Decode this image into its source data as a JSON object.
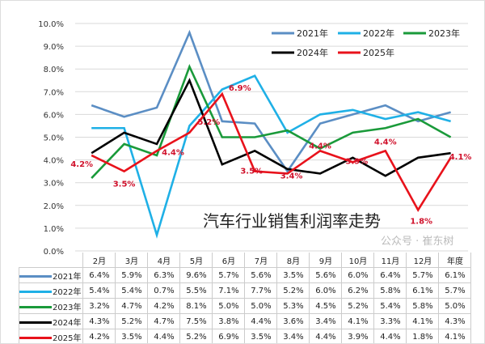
{
  "chart_data": {
    "type": "line",
    "title": "汽车行业销售利润率走势",
    "categories": [
      "2月",
      "3月",
      "4月",
      "5月",
      "6月",
      "7月",
      "8月",
      "9月",
      "10月",
      "11月",
      "12月",
      "年度"
    ],
    "yticks": [
      "0.0%",
      "1.0%",
      "2.0%",
      "3.0%",
      "4.0%",
      "5.0%",
      "6.0%",
      "7.0%",
      "8.0%",
      "9.0%",
      "10.0%"
    ],
    "ylim": [
      0,
      10
    ],
    "grid": true,
    "legend": "top-right",
    "data_labels_series": "2025年",
    "series": [
      {
        "name": "2021年",
        "color": "#5b8ec4",
        "values": [
          6.4,
          5.9,
          6.3,
          9.6,
          5.7,
          5.6,
          3.5,
          5.6,
          6.0,
          6.4,
          5.7,
          6.1
        ]
      },
      {
        "name": "2022年",
        "color": "#1fb0e6",
        "values": [
          5.4,
          5.4,
          0.7,
          5.5,
          7.1,
          7.7,
          5.2,
          6.0,
          6.2,
          5.8,
          6.1,
          5.7
        ]
      },
      {
        "name": "2023年",
        "color": "#1a9a3a",
        "values": [
          3.2,
          4.7,
          4.2,
          8.1,
          5.0,
          5.0,
          5.3,
          4.5,
          5.2,
          5.4,
          5.8,
          5.0
        ]
      },
      {
        "name": "2024年",
        "color": "#000000",
        "values": [
          4.3,
          5.2,
          4.7,
          7.5,
          3.8,
          4.4,
          3.6,
          3.4,
          4.1,
          3.3,
          4.1,
          4.3
        ]
      },
      {
        "name": "2025年",
        "color": "#e8121b",
        "values": [
          4.2,
          3.5,
          4.4,
          5.2,
          6.9,
          3.5,
          3.4,
          4.4,
          3.9,
          4.4,
          1.8,
          4.1
        ]
      }
    ]
  },
  "watermark": "公众号 · 崔东树"
}
